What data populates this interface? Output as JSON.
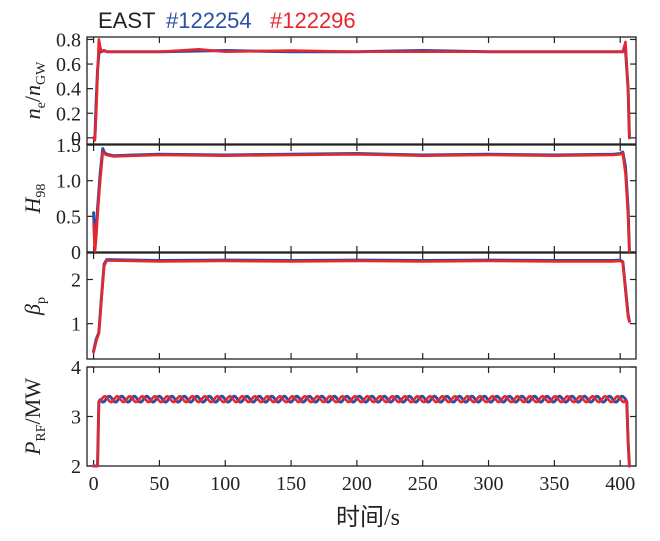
{
  "legend": {
    "device": "EAST",
    "shots": [
      {
        "label": "#122254",
        "color": "#2a4fa6"
      },
      {
        "label": "#122296",
        "color": "#e8262e"
      }
    ]
  },
  "chart_data": {
    "type": "line",
    "xlabel": "时间/s",
    "x_ticks": [
      "0",
      "50",
      "100",
      "150",
      "200",
      "250",
      "300",
      "350",
      "400"
    ],
    "xlim": [
      -5,
      412
    ],
    "panels": [
      {
        "id": "density",
        "ylabel": "n_e/n_GW",
        "ylabel_parts": {
          "main": "n",
          "sub1": "e",
          "slash": "/",
          "main2": "n",
          "sub2": "GW"
        },
        "ylim": [
          -0.05,
          0.82
        ],
        "yticks": [
          0,
          0.2,
          0.4,
          0.6,
          0.8
        ],
        "ytick_labels": [
          "0",
          "0.2",
          "0.4",
          "0.6",
          "0.8"
        ],
        "series": [
          {
            "name": "#122254",
            "x": [
              0,
              1,
              2,
              3,
              4,
              5,
              6,
              8,
              10,
              50,
              100,
              150,
              200,
              250,
              300,
              350,
              395,
              400,
              402,
              404,
              406,
              407
            ],
            "y": [
              0.0,
              0.0,
              0.3,
              0.55,
              0.68,
              0.72,
              0.7,
              0.71,
              0.7,
              0.7,
              0.71,
              0.7,
              0.7,
              0.71,
              0.7,
              0.7,
              0.7,
              0.7,
              0.7,
              0.72,
              0.4,
              0.0
            ]
          },
          {
            "name": "#122296",
            "x": [
              0,
              1,
              2,
              3,
              4,
              5,
              6,
              8,
              10,
              50,
              80,
              100,
              150,
              200,
              250,
              300,
              350,
              395,
              400,
              402,
              404,
              406,
              407
            ],
            "y": [
              0.0,
              -0.02,
              0.2,
              0.5,
              0.8,
              0.74,
              0.7,
              0.71,
              0.7,
              0.7,
              0.72,
              0.7,
              0.71,
              0.7,
              0.7,
              0.7,
              0.7,
              0.7,
              0.7,
              0.7,
              0.78,
              0.4,
              0.0
            ]
          }
        ]
      },
      {
        "id": "confinement",
        "ylabel": "H_98",
        "ylabel_parts": {
          "main": "H",
          "sub1": "98"
        },
        "ylim": [
          0,
          1.5
        ],
        "yticks": [
          0,
          0.5,
          1.0,
          1.5
        ],
        "ytick_labels": [
          "0",
          "0.5",
          "1.0",
          "1.5"
        ],
        "series": [
          {
            "name": "#122254",
            "x": [
              0,
              1,
              2,
              3,
              5,
              7,
              8,
              10,
              15,
              50,
              100,
              150,
              200,
              250,
              300,
              350,
              395,
              400,
              402,
              404,
              406,
              407
            ],
            "y": [
              0.55,
              0.1,
              0.3,
              0.6,
              1.1,
              1.45,
              1.4,
              1.37,
              1.35,
              1.37,
              1.36,
              1.37,
              1.38,
              1.36,
              1.37,
              1.36,
              1.37,
              1.38,
              1.4,
              1.2,
              0.6,
              0.0
            ]
          },
          {
            "name": "#122296",
            "x": [
              0,
              1,
              2,
              3,
              5,
              7,
              8,
              10,
              15,
              50,
              100,
              150,
              200,
              250,
              300,
              350,
              395,
              400,
              402,
              404,
              406,
              407
            ],
            "y": [
              0.4,
              0.0,
              0.2,
              0.5,
              1.0,
              1.4,
              1.38,
              1.36,
              1.34,
              1.36,
              1.35,
              1.36,
              1.37,
              1.35,
              1.36,
              1.35,
              1.36,
              1.37,
              1.38,
              1.1,
              0.5,
              0.0
            ]
          }
        ]
      },
      {
        "id": "beta",
        "ylabel": "β_p",
        "ylabel_parts": {
          "main": "β",
          "sub1": "p"
        },
        "ylim": [
          0.2,
          2.6
        ],
        "yticks": [
          1,
          2
        ],
        "ytick_labels": [
          "1",
          "2"
        ],
        "series": [
          {
            "name": "#122254",
            "x": [
              0,
              2,
              4,
              6,
              8,
              10,
              50,
              100,
              150,
              200,
              250,
              300,
              350,
              395,
              400,
              402,
              404,
              406,
              407
            ],
            "y": [
              0.38,
              0.65,
              0.8,
              1.6,
              2.35,
              2.45,
              2.43,
              2.44,
              2.43,
              2.44,
              2.43,
              2.44,
              2.43,
              2.43,
              2.44,
              2.4,
              1.8,
              1.2,
              1.05
            ]
          },
          {
            "name": "#122296",
            "x": [
              0,
              2,
              4,
              6,
              8,
              10,
              50,
              100,
              150,
              200,
              250,
              300,
              350,
              395,
              400,
              402,
              404,
              406,
              407
            ],
            "y": [
              0.35,
              0.6,
              0.78,
              1.55,
              2.3,
              2.43,
              2.41,
              2.42,
              2.41,
              2.42,
              2.41,
              2.42,
              2.41,
              2.41,
              2.42,
              2.38,
              1.75,
              1.15,
              1.05
            ]
          }
        ]
      },
      {
        "id": "rfpower",
        "ylabel": "P_RF/MW",
        "ylabel_parts": {
          "main": "P",
          "sub1": "RF",
          "slash": "/MW"
        },
        "ylim": [
          2,
          4
        ],
        "yticks": [
          2,
          3,
          4
        ],
        "ytick_labels": [
          "2",
          "3",
          "4"
        ],
        "oscillation": {
          "mean": 3.35,
          "amplitude": 0.06,
          "period_s": 9.5
        },
        "series": [
          {
            "name": "#122254",
            "x": [
              0,
              3,
              4,
              404,
              405,
              406,
              407
            ],
            "y": [
              2.0,
              2.0,
              3.3,
              3.35,
              3.3,
              2.5,
              2.0
            ],
            "phase": 0.0
          },
          {
            "name": "#122296",
            "x": [
              0,
              3,
              4,
              404,
              405,
              406,
              407
            ],
            "y": [
              2.0,
              2.0,
              3.3,
              3.32,
              3.3,
              2.5,
              2.0
            ],
            "phase": 2.2
          }
        ]
      }
    ]
  }
}
